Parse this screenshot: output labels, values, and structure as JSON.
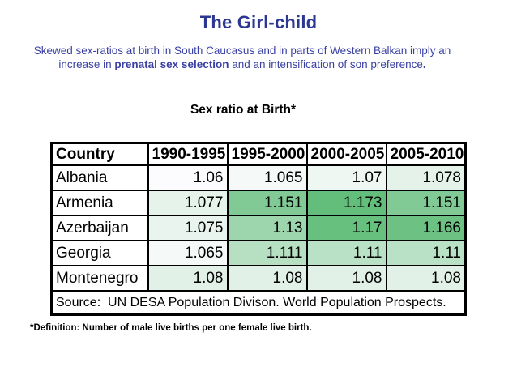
{
  "slide": {
    "title": "The Girl-child",
    "subtitle": {
      "line1": "Skewed sex-ratios at birth in South Caucasus and in parts of Western Balkan imply an",
      "line2_pre": "increase in ",
      "line2_bold": "prenatal sex selection",
      "line2_mid": " and an intensification of son preference",
      "line2_end": "."
    },
    "footnote": "*Definition: Number of male live births per one female live birth."
  },
  "colors": {
    "title_blue": "#2c3792",
    "subtitle_blue": "#3a41a3",
    "table_border": "#000000",
    "scale_min_color": "#FCFCFF",
    "scale_max_color": "#63BE7B"
  },
  "chart_data": {
    "type": "table",
    "title": "Sex ratio at Birth*",
    "columns": [
      "Country",
      "1990-1995",
      "1995-2000",
      "2000-2005",
      "2005-2010"
    ],
    "rows": [
      {
        "country": "Albania",
        "values": [
          1.06,
          1.065,
          1.07,
          1.078
        ],
        "colors": [
          "#FCFCFF",
          "#F5F9F8",
          "#EFF7F2",
          "#E4F2EA"
        ]
      },
      {
        "country": "Armenia",
        "values": [
          1.077,
          1.151,
          1.173,
          1.151
        ],
        "colors": [
          "#E5F3EB",
          "#81CA95",
          "#63BE7B",
          "#81CA95"
        ]
      },
      {
        "country": "Azerbaijan",
        "values": [
          1.075,
          1.13,
          1.17,
          1.166
        ],
        "colors": [
          "#E8F4ED",
          "#9DD6AD",
          "#68C07F",
          "#6DC283"
        ]
      },
      {
        "country": "Georgia",
        "values": [
          1.065,
          1.111,
          1.11,
          1.11
        ],
        "colors": [
          "#F5F9F8",
          "#B7E0C3",
          "#B8E1C5",
          "#B8E1C5"
        ]
      },
      {
        "country": "Montenegro",
        "values": [
          1.08,
          1.08,
          1.08,
          1.08
        ],
        "colors": [
          "#E1F1E8",
          "#E1F1E8",
          "#E1F1E8",
          "#E1F1E8"
        ]
      }
    ],
    "source": "Source:  UN DESA Population Divison. World Population Prospects.",
    "color_scale": {
      "min_value": 1.06,
      "max_value": 1.173,
      "min_color": "#FCFCFF",
      "max_color": "#63BE7B"
    },
    "layout": {
      "grid": false,
      "legend": "none"
    }
  }
}
